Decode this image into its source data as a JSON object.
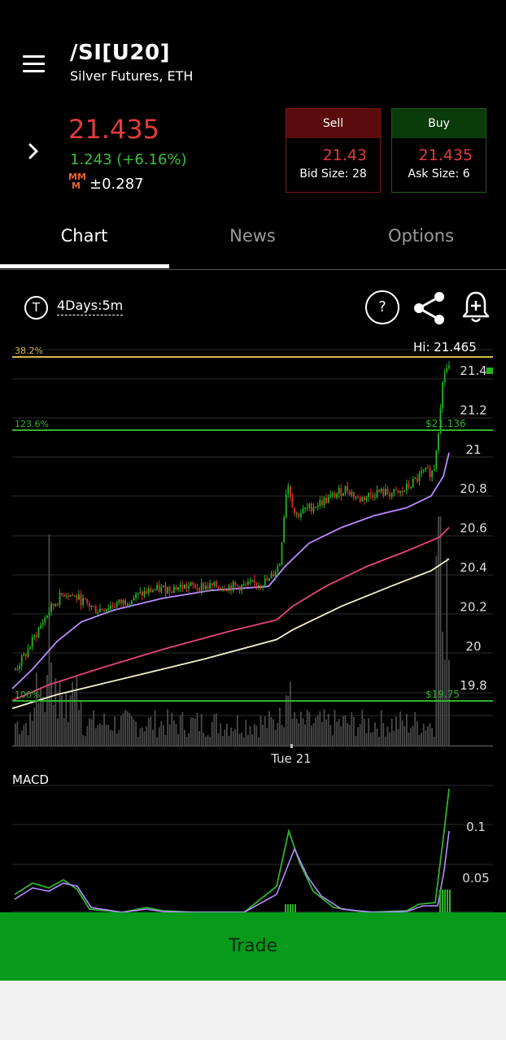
{
  "header": {
    "symbol": "/SI[U20]",
    "subtitle": "Silver Futures, ETH"
  },
  "quote": {
    "last": "21.435",
    "change": "1.243 (+6.16%)",
    "mm_label_top": "MM",
    "mm_label_bottom": "M",
    "mm_value": "±0.287",
    "sell": {
      "label": "Sell",
      "price": "21.43",
      "size": "Bid Size: 28"
    },
    "buy": {
      "label": "Buy",
      "price": "21.435",
      "size": "Ask Size: 6"
    }
  },
  "tabs": [
    {
      "label": "Chart",
      "active": true
    },
    {
      "label": "News",
      "active": false
    },
    {
      "label": "Options",
      "active": false
    }
  ],
  "toolbar": {
    "interval_icon": "T",
    "interval": "4Days:5m",
    "help": "?",
    "icons": [
      "help-icon",
      "share-icon",
      "alert-bell-icon"
    ]
  },
  "chart_data": {
    "type": "candlestick",
    "y_ticks": [
      "21.4",
      "21.2",
      "21",
      "20.8",
      "20.6",
      "20.4",
      "20.2",
      "20",
      "19.8"
    ],
    "x_tick": "Tue 21",
    "hi_label": "Hi: 21.465",
    "fib_lines": [
      {
        "label": "38.2%",
        "price_label": ""
      },
      {
        "label": "123.6%",
        "price_label": "$21.136"
      },
      {
        "label": "100%",
        "price_label": "$19.75"
      }
    ],
    "macd_label": "MACD",
    "macd_ticks": [
      "0.1",
      "0.05"
    ],
    "colors": {
      "up": "#22b522",
      "down": "#e03030",
      "ma_fast": "#b98cff",
      "ma_mid": "#e8457a",
      "ma_slow": "#f5f0d0",
      "fib_gold": "#d7b84a",
      "fib_green": "#2fb22f",
      "volume": "#4a4a4a"
    }
  },
  "footer": {
    "trade_label": "Trade"
  }
}
